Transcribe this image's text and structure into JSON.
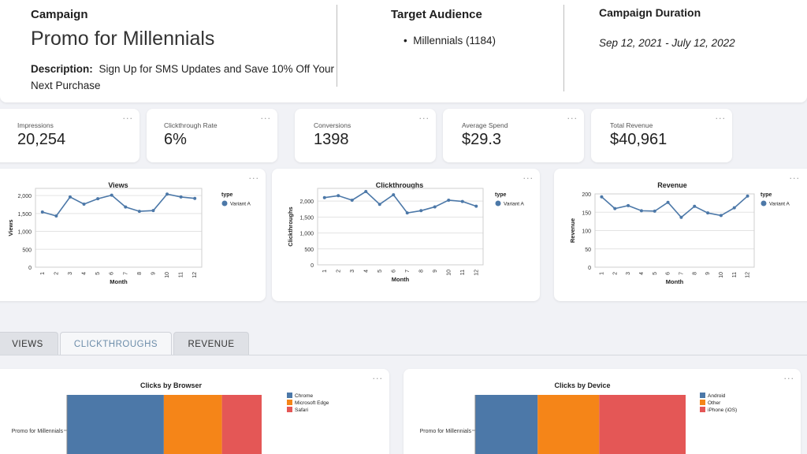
{
  "header": {
    "campaign_label": "Campaign",
    "campaign_name": "Promo for Millennials",
    "description_label": "Description:",
    "description_text": "Sign Up for SMS Updates and Save 10% Off Your Next Purchase",
    "audience_label": "Target Audience",
    "audience_items": [
      "Millennials (1184)"
    ],
    "duration_label": "Campaign Duration",
    "duration_text": "Sep 12, 2021 - July 12, 2022"
  },
  "kpis": [
    {
      "label": "Impressions",
      "value": "20,254"
    },
    {
      "label": "Clickthrough Rate",
      "value": "6%"
    },
    {
      "label": "Conversions",
      "value": "1398"
    },
    {
      "label": "Average Spend",
      "value": "$29.3"
    },
    {
      "label": "Total Revenue",
      "value": "$40,961"
    }
  ],
  "menu_glyph": "···",
  "tabs": [
    {
      "label": "VIEWS",
      "active": false
    },
    {
      "label": "CLICKTHROUGHS",
      "active": true
    },
    {
      "label": "REVENUE",
      "active": false
    }
  ],
  "colors": {
    "series": "#4c78a8",
    "chrome": "#4c78a8",
    "edge": "#f58518",
    "safari": "#e45756",
    "tab_active_text": "#6d8daa"
  },
  "chart_data": [
    {
      "type": "line",
      "title": "Views",
      "xlabel": "Month",
      "ylabel": "Views",
      "x": [
        1,
        2,
        3,
        4,
        5,
        6,
        7,
        8,
        9,
        10,
        11,
        12
      ],
      "ylim": [
        0,
        2200
      ],
      "yticks": [
        0,
        500,
        1000,
        1500,
        2000
      ],
      "ytick_labels": [
        "0",
        "500",
        "1,000",
        "1,500",
        "2,000"
      ],
      "legend_title": "type",
      "series": [
        {
          "name": "Variant A",
          "values": [
            1540,
            1430,
            1960,
            1760,
            1910,
            2010,
            1680,
            1560,
            1580,
            2040,
            1960,
            1920
          ]
        }
      ]
    },
    {
      "type": "line",
      "title": "Clickthroughs",
      "xlabel": "Month",
      "ylabel": "Clickthroughs",
      "x": [
        1,
        2,
        3,
        4,
        5,
        6,
        7,
        8,
        9,
        10,
        11,
        12
      ],
      "ylim": [
        0,
        2400
      ],
      "yticks": [
        0,
        500,
        1000,
        1500,
        2000
      ],
      "ytick_labels": [
        "0",
        "500",
        "1,000",
        "1,500",
        "2,000"
      ],
      "legend_title": "type",
      "series": [
        {
          "name": "Variant A",
          "values": [
            2110,
            2170,
            2030,
            2300,
            1900,
            2200,
            1630,
            1700,
            1820,
            2030,
            1990,
            1840
          ]
        }
      ]
    },
    {
      "type": "line",
      "title": "Revenue",
      "xlabel": "Month",
      "ylabel": "Revenue",
      "x": [
        1,
        2,
        3,
        4,
        5,
        6,
        7,
        8,
        9,
        10,
        11,
        12
      ],
      "ylim": [
        0,
        200
      ],
      "yticks": [
        0,
        50,
        100,
        150,
        200
      ],
      "ytick_labels": [
        "0",
        "50",
        "100",
        "150",
        "200"
      ],
      "legend_title": "type",
      "series": [
        {
          "name": "Variant A",
          "values": [
            192,
            160,
            168,
            154,
            153,
            177,
            136,
            166,
            148,
            141,
            162,
            194
          ]
        }
      ]
    },
    {
      "type": "bar",
      "orientation": "horizontal-stacked",
      "title": "Clicks by Browser",
      "categories": [
        "Promo for Millennials"
      ],
      "series": [
        {
          "name": "Chrome",
          "values": [
            1000
          ]
        },
        {
          "name": "Microsoft Edge",
          "values": [
            600
          ]
        },
        {
          "name": "Safari",
          "values": [
            410
          ]
        }
      ]
    },
    {
      "type": "bar",
      "orientation": "horizontal-stacked",
      "title": "Clicks by Device",
      "categories": [
        "Promo for Millennials"
      ],
      "series": [
        {
          "name": "Android",
          "values": [
            650
          ]
        },
        {
          "name": "Other",
          "values": [
            640
          ]
        },
        {
          "name": "iPhone (iOS)",
          "values": [
            900
          ]
        }
      ]
    }
  ]
}
